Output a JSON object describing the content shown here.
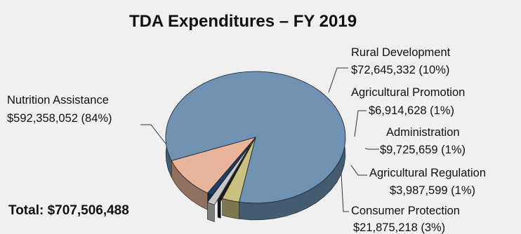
{
  "chart_data": {
    "type": "pie",
    "title": "TDA Expenditures – FY 2019",
    "total_label": "Total: $707,506,488",
    "slices": [
      {
        "name": "Nutrition Assistance",
        "value": 592358052,
        "value_label": "$592,358,052 (84%)",
        "color": "#6f92b3"
      },
      {
        "name": "Rural Development",
        "value": 72645332,
        "value_label": "$72,645,332 (10%)",
        "color": "#e8b49a"
      },
      {
        "name": "Agricultural Promotion",
        "value": 6914628,
        "value_label": "$6,914,628 (1%)",
        "color": "#1c3f6e"
      },
      {
        "name": "Administration",
        "value": 9725659,
        "value_label": "$9,725,659 (1%)",
        "color": "#c8c8c8"
      },
      {
        "name": "Agricultural Regulation",
        "value": 3987599,
        "value_label": "$3,987,599 (1%)",
        "color": "#1a1a1a"
      },
      {
        "name": "Consumer Protection",
        "value": 21875218,
        "value_label": "$21,875,218 (3%)",
        "color": "#c9c27e"
      }
    ]
  }
}
